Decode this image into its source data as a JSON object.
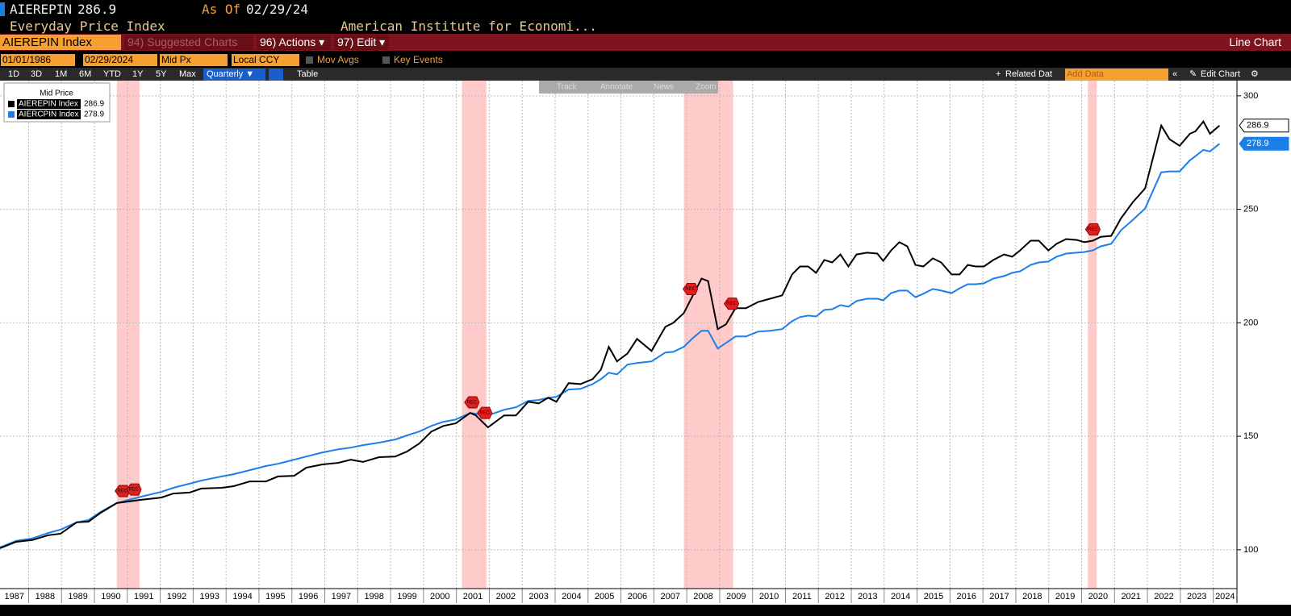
{
  "header": {
    "ticker": "AIEREPIN",
    "last": "286.9",
    "as_of_label": "As Of",
    "as_of": "02/29/24",
    "name": "Everyday Price Index",
    "source": "American Institute for Economi..."
  },
  "menu": {
    "security": "AIEREPIN Index",
    "items": [
      "94) Suggested Charts",
      "96) Actions ▾",
      "97) Edit ▾"
    ],
    "chart_type": "Line Chart"
  },
  "controls": {
    "start": "01/01/1986",
    "end": "02/29/2024",
    "field": "Mid Px",
    "currency": "Local CCY",
    "options": [
      "Mov Avgs",
      "Key Events"
    ]
  },
  "toolbar": {
    "ranges": [
      "1D",
      "3D",
      "1M",
      "6M",
      "YTD",
      "1Y",
      "5Y",
      "Max"
    ],
    "period": "Quarterly ▼",
    "table": "Table",
    "related": "Related Dat",
    "add": "Add Data",
    "edit": "Edit Chart"
  },
  "chart_tools": [
    "Track",
    "Annotate",
    "News",
    "Zoom"
  ],
  "chart_data": {
    "type": "line",
    "legend_title": "Mid Price",
    "x": [
      1987.13,
      1987.62,
      1988.11,
      1988.6,
      1988.97,
      1989.46,
      1989.82,
      1990.19,
      1990.68,
      1991.05,
      1991.42,
      1992.03,
      1992.4,
      1992.89,
      1993.25,
      1993.87,
      1994.23,
      1994.72,
      1995.21,
      1995.58,
      1996.07,
      1996.44,
      1996.93,
      1997.42,
      1997.79,
      1998.16,
      1998.65,
      1999.14,
      1999.5,
      1999.87,
      2000.24,
      2000.61,
      2000.98,
      2001.42,
      2001.59,
      2001.96,
      2002.45,
      2002.81,
      2003.18,
      2003.5,
      2003.79,
      2004.04,
      2004.41,
      2004.77,
      2005.14,
      2005.39,
      2005.63,
      2005.88,
      2006.2,
      2006.49,
      2006.93,
      2007.35,
      2007.59,
      2007.91,
      2008.16,
      2008.45,
      2008.65,
      2008.94,
      2009.19,
      2009.48,
      2009.8,
      2010.17,
      2010.53,
      2010.9,
      2011.2,
      2011.44,
      2011.69,
      2011.93,
      2012.18,
      2012.42,
      2012.67,
      2012.91,
      2013.16,
      2013.48,
      2013.79,
      2013.97,
      2014.21,
      2014.46,
      2014.7,
      2014.95,
      2015.19,
      2015.48,
      2015.73,
      2016.05,
      2016.29,
      2016.54,
      2016.78,
      2017.03,
      2017.32,
      2017.64,
      2017.89,
      2018.13,
      2018.45,
      2018.7,
      2018.99,
      2019.24,
      2019.53,
      2019.85,
      2020.09,
      2020.34,
      2020.58,
      2020.9,
      2021.2,
      2021.56,
      2021.93,
      2022.42,
      2022.67,
      2022.98,
      2023.29,
      2023.46,
      2023.7,
      2023.9,
      2024.19
    ],
    "series": [
      {
        "name": "AIEREPIN Index",
        "color": "#000000",
        "values": [
          100.7,
          103.5,
          104.3,
          106.4,
          107.1,
          112.1,
          112.4,
          116.3,
          120.6,
          121.3,
          122.0,
          123.0,
          124.8,
          125.2,
          127.0,
          127.3,
          128.0,
          130.1,
          130.1,
          132.3,
          132.6,
          136.2,
          137.6,
          138.3,
          139.7,
          138.7,
          140.8,
          141.1,
          143.3,
          146.8,
          152.1,
          154.6,
          155.7,
          160.3,
          159.2,
          153.9,
          159.2,
          159.2,
          165.2,
          164.5,
          167.0,
          165.2,
          173.4,
          173.0,
          175.2,
          179.4,
          189.4,
          183.0,
          186.5,
          192.9,
          187.6,
          198.2,
          200.0,
          204.3,
          211.3,
          219.5,
          218.4,
          197.2,
          199.3,
          206.4,
          206.4,
          209.2,
          210.6,
          212.1,
          221.3,
          224.8,
          224.8,
          222.0,
          227.7,
          226.6,
          230.1,
          224.8,
          230.1,
          230.9,
          230.5,
          227.3,
          231.9,
          235.5,
          233.7,
          225.5,
          224.8,
          228.4,
          226.6,
          221.3,
          221.3,
          225.5,
          224.8,
          224.8,
          227.7,
          230.1,
          229.1,
          231.9,
          236.2,
          236.2,
          231.9,
          234.8,
          236.9,
          236.5,
          235.5,
          236.2,
          237.9,
          238.3,
          246.1,
          253.2,
          259.2,
          286.9,
          280.9,
          278.0,
          283.3,
          284.4,
          288.7,
          283.3,
          286.9
        ]
      },
      {
        "name": "AIERCPIN Index",
        "color": "#1a7fe8",
        "values": [
          101.1,
          103.9,
          105.0,
          107.4,
          108.9,
          112.1,
          113.1,
          116.7,
          120.6,
          122.0,
          123.4,
          125.5,
          127.3,
          129.1,
          130.5,
          132.3,
          133.3,
          135.1,
          136.9,
          137.9,
          139.7,
          141.1,
          142.9,
          144.3,
          145.0,
          146.1,
          147.2,
          148.6,
          150.4,
          152.1,
          154.6,
          156.4,
          157.4,
          160.3,
          159.9,
          159.2,
          161.7,
          162.8,
          165.6,
          166.0,
          167.0,
          167.4,
          170.6,
          170.9,
          173.0,
          175.2,
          178.0,
          177.3,
          181.6,
          182.3,
          183.0,
          186.9,
          187.2,
          189.4,
          192.9,
          196.5,
          196.5,
          188.7,
          191.1,
          194.0,
          194.0,
          196.1,
          196.5,
          197.2,
          200.7,
          202.5,
          203.2,
          202.8,
          205.7,
          206.0,
          207.8,
          207.1,
          209.6,
          210.6,
          210.6,
          209.9,
          213.1,
          214.2,
          214.2,
          211.3,
          212.8,
          214.9,
          214.2,
          213.1,
          215.2,
          217.0,
          217.0,
          217.4,
          219.5,
          220.6,
          222.0,
          222.7,
          225.5,
          226.6,
          227.0,
          229.1,
          230.5,
          230.9,
          231.2,
          231.9,
          233.7,
          234.8,
          240.8,
          245.4,
          250.4,
          266.3,
          266.7,
          266.7,
          271.6,
          273.4,
          276.2,
          275.5,
          278.9
        ]
      }
    ],
    "xlim": [
      1987.13,
      2024.72
    ],
    "xticks": [
      1987,
      1988,
      1989,
      1990,
      1991,
      1992,
      1993,
      1994,
      1995,
      1996,
      1997,
      1998,
      1999,
      2000,
      2001,
      2002,
      2003,
      2004,
      2005,
      2006,
      2007,
      2008,
      2009,
      2010,
      2011,
      2012,
      2013,
      2014,
      2015,
      2016,
      2017,
      2018,
      2019,
      2020,
      2021,
      2022,
      2023,
      2024
    ],
    "ylim": [
      82.9,
      306.7
    ],
    "yticks": [
      100,
      150,
      200,
      250,
      300
    ],
    "grid": true,
    "recessions": [
      [
        1990.68,
        1991.37
      ],
      [
        2001.17,
        2001.91
      ],
      [
        2007.91,
        2009.41
      ],
      [
        2020.19,
        2020.46
      ]
    ],
    "events": [
      {
        "x": 1990.85,
        "label": "REC"
      },
      {
        "x": 1991.2,
        "label": "REC"
      },
      {
        "x": 2001.47,
        "label": "REC"
      },
      {
        "x": 2001.86,
        "label": "REC"
      },
      {
        "x": 2008.11,
        "label": "REC"
      },
      {
        "x": 2009.36,
        "label": "REC"
      },
      {
        "x": 2020.34,
        "label": "REC"
      }
    ]
  }
}
